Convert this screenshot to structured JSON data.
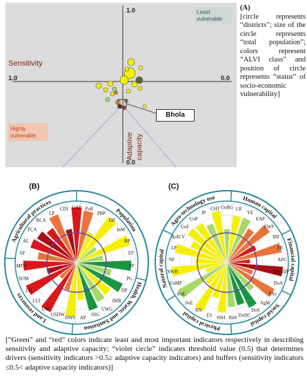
{
  "panel_a": {
    "label": "(A)",
    "caption": "[circle represents “districts”; size of the circle represents “total population”; colors represent “ALVI class” and position of circle represents “status” of socio-economic vulnerability]",
    "x_axis_label": "Sensitivity",
    "y_axis_label_line1": "Adaptive",
    "y_axis_label_line2": "capacity",
    "tick_top": "1.0",
    "tick_bottom": "0.0",
    "tick_left": "1.0",
    "tick_right": "0.0",
    "least_vulnerable": "Least vulnerable",
    "highly_vulnerable": "Highly vulnerable",
    "callout": "Bhola"
  },
  "panel_b": {
    "label": "(B)",
    "sectors": [
      "Agricultural practices",
      "Population",
      "Health, Water, and Sanitation",
      "Land resources"
    ],
    "indicators": [
      "PoR",
      "PBP",
      "DR",
      "InM",
      "RP",
      "EP",
      "FP",
      "PG",
      "DP",
      "IMR",
      "UWG",
      "SSG",
      "AP",
      "DWS",
      "USDW",
      "USC",
      "LUI",
      "LD",
      "SOM",
      "MFH",
      "SP",
      "AL",
      "FCA",
      "RCA",
      "LP",
      "CDI",
      "GAP"
    ]
  },
  "panel_c": {
    "label": "(C)",
    "sectors": [
      "Agro-technology use",
      "Human capital",
      "Financial capital",
      "Social capital",
      "Physical capital",
      "Natural capital"
    ],
    "indicators": [
      "LR",
      "YE",
      "EAP",
      "FWP",
      "IDI",
      "FR",
      "AFC",
      "SAGDP",
      "DoA",
      "FAs",
      "AgM",
      "DoS",
      "DoHC",
      "RhS",
      "SSH",
      "ES",
      "RN",
      "SoE",
      "RuE",
      "UoMP",
      "NWB",
      "NF",
      "LP",
      "AoICV",
      "UoF",
      "UoP",
      "IP",
      "CHT",
      "UoBG"
    ]
  },
  "colors": {
    "red": "#d7191c",
    "dark_red": "#a50f15",
    "orange": "#e8743b",
    "yellow": "#f5f000",
    "light_green": "#a6d96a",
    "green": "#1a9641",
    "violet": "#6b3fa0",
    "ring": "#2a8a9a"
  },
  "caption_bottom": "[“Green” and “red” colors indicate least and most important indicators respectively in describing sensitivity and adaptive capacity; “violet circle” indicates threshold value (0.5) that determines drivers (sensitivity indicators >0.5≥ adaptive capacity indicators) and buffers (sensitivity indicators ≤0.5< adaptive capacity indicators)]"
}
